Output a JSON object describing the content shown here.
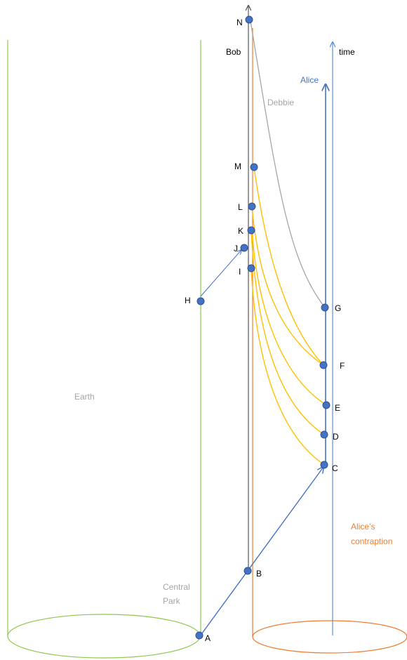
{
  "labels": {
    "earth": "Earth",
    "central_park_line1": "Central",
    "central_park_line2": "Park",
    "bob": "Bob",
    "time": "time",
    "alice": "Alice",
    "debbie": "Debbie",
    "contraption_line1": "Alice’s",
    "contraption_line2": "contraption"
  },
  "events": [
    "A",
    "B",
    "C",
    "D",
    "E",
    "F",
    "G",
    "H",
    "I",
    "J",
    "K",
    "L",
    "M",
    "N"
  ],
  "colors": {
    "earth": "#8cc84b",
    "contraption": "#ed7d31",
    "bob": "#595959",
    "alice": "#4472c4",
    "time_axis": "#5b8fd6",
    "debbie": "#a5a5a5",
    "signals": "#ffc000",
    "point_fill": "#4472c4",
    "point_stroke": "#2f528f",
    "gray_text": "#a5a5a5"
  }
}
